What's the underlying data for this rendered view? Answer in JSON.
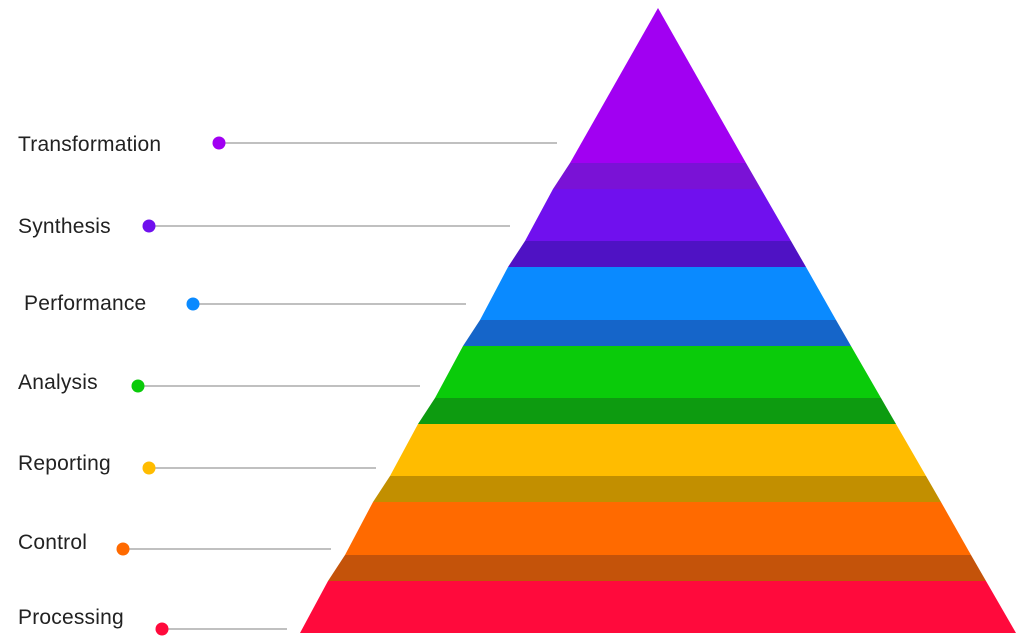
{
  "levels": [
    {
      "label": "Transformation",
      "color": "#a100f2",
      "connector_color": "#7a12d6"
    },
    {
      "label": "Synthesis",
      "color": "#7010ee",
      "connector_color": "#4f12c4"
    },
    {
      "label": "Performance",
      "color": "#0a8aff",
      "connector_color": "#1565c9"
    },
    {
      "label": "Analysis",
      "color": "#0acb0a",
      "connector_color": "#0d9b10"
    },
    {
      "label": "Reporting",
      "color": "#ffbc00",
      "connector_color": "#c28f00"
    },
    {
      "label": "Control",
      "color": "#ff6a00",
      "connector_color": "#c4530a"
    },
    {
      "label": "Processing",
      "color": "#ff0a3c",
      "connector_color": "#c60b36"
    }
  ],
  "leader_line_color": "#9a9a9a"
}
